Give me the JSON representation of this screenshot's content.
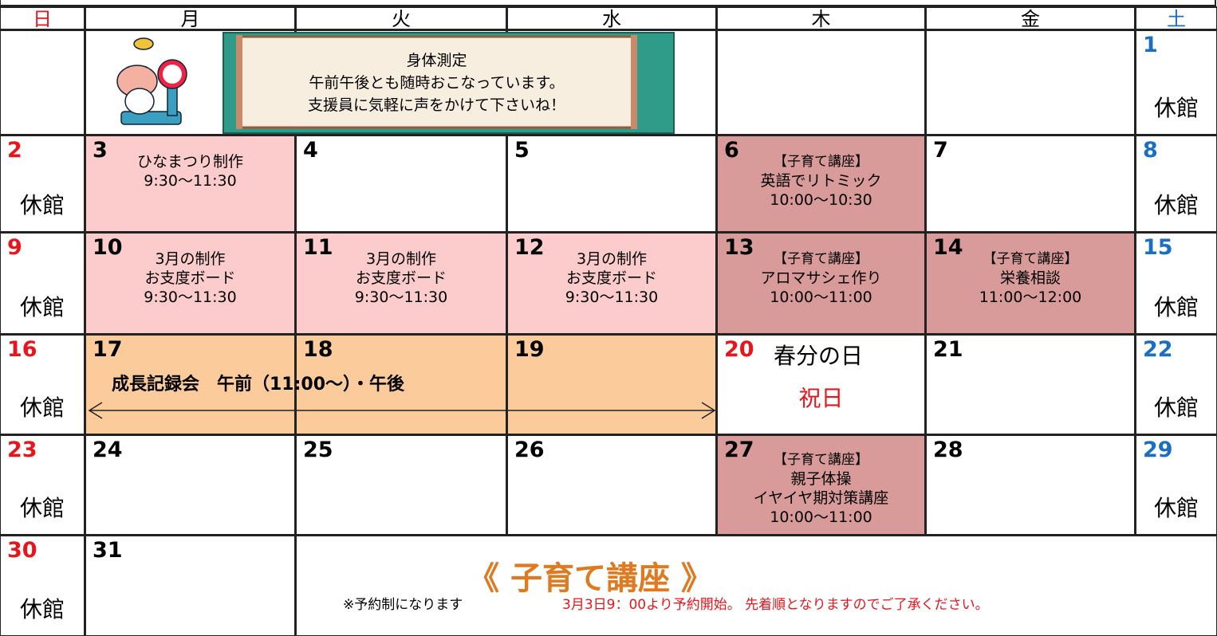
{
  "weekdays": [
    "日",
    "月",
    "火",
    "水",
    "木",
    "金",
    "土"
  ],
  "banner": {
    "title": "身体測定",
    "lines": [
      "午前午後とも随時おこなっています。",
      "支援員に気軽に声をかけて下さいね！"
    ]
  },
  "weeks": [
    [
      null,
      null,
      null,
      null,
      null,
      null,
      {
        "day": 1,
        "note": "休館"
      }
    ],
    [
      {
        "day": 2,
        "note": "休館"
      },
      {
        "day": 3,
        "lines": [
          "ひなまつり制作",
          "9:30～11:30"
        ],
        "color": "#fccccc"
      },
      {
        "day": 4
      },
      {
        "day": 5
      },
      {
        "day": 6,
        "lines": [
          "【子育て講座】",
          "英語でリトミック",
          "10:00～10:30"
        ],
        "color": "#d99a9a"
      },
      {
        "day": 7
      },
      {
        "day": 8,
        "note": "休館"
      }
    ],
    [
      {
        "day": 9,
        "note": "休館"
      },
      {
        "day": 10,
        "lines": [
          "3月の制作",
          "お支度ボード",
          "9:30～11:30"
        ],
        "color": "#fccccc"
      },
      {
        "day": 11,
        "lines": [
          "3月の制作",
          "お支度ボード",
          "9:30～11:30"
        ],
        "color": "#fccccc"
      },
      {
        "day": 12,
        "lines": [
          "3月の制作",
          "お支度ボード",
          "9:30～11:30"
        ],
        "color": "#fccccc"
      },
      {
        "day": 13,
        "lines": [
          "【子育て講座】",
          "アロマサシェ作り",
          "10:00～11:00"
        ],
        "color": "#d99a9a"
      },
      {
        "day": 14,
        "lines": [
          "【子育て講座】",
          "栄養相談",
          "11:00～12:00"
        ],
        "color": "#d99a9a"
      },
      {
        "day": 15,
        "note": "休館"
      }
    ],
    [
      {
        "day": 16,
        "note": "休館"
      },
      {
        "day": 17,
        "color": "#fccb9b"
      },
      {
        "day": 18,
        "color": "#fccb9b"
      },
      {
        "day": 19,
        "color": "#fccb9b"
      },
      {
        "day": 20,
        "title": "春分の日",
        "note": "祝日"
      },
      {
        "day": 21
      },
      {
        "day": 22,
        "note": "休館"
      }
    ],
    [
      {
        "day": 23,
        "note": "休館"
      },
      {
        "day": 24
      },
      {
        "day": 25
      },
      {
        "day": 26
      },
      {
        "day": 27,
        "lines": [
          "【子育て講座】",
          "親子体操",
          "イヤイヤ期対策講座",
          "10:00～11:00"
        ],
        "color": "#d99a9a"
      },
      {
        "day": 28
      },
      {
        "day": 29,
        "note": "休館"
      }
    ],
    [
      {
        "day": 30,
        "note": "休館"
      },
      {
        "day": 31
      },
      null,
      null,
      null,
      null,
      null
    ]
  ],
  "span_event": "成長記録会　午前（11:00～）・午後",
  "notice": {
    "title": "《 子育て講座 》",
    "note": "※予約制になります",
    "detail": "3月3日9：00より予約開始。 先着順となりますのでご了承ください。"
  }
}
